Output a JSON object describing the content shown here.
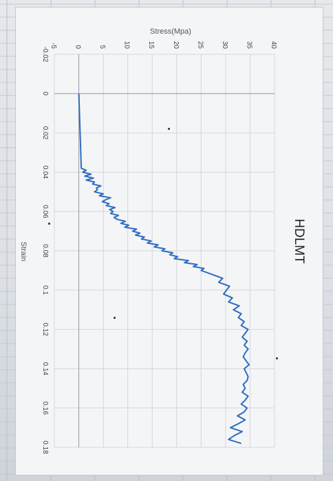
{
  "chart_data": {
    "type": "line",
    "title": "HDLMT",
    "xlabel": "Strain",
    "ylabel": "Stress(Mpa)",
    "xlim": [
      -0.02,
      0.18
    ],
    "ylim": [
      -5,
      40
    ],
    "xticks": [
      "-0.02",
      "0",
      "0.02",
      "0.04",
      "0.06",
      "0.08",
      "0.1",
      "0.12",
      "0.14",
      "0.16",
      "0.18"
    ],
    "yticks": [
      "-5",
      "0",
      "5",
      "10",
      "15",
      "20",
      "25",
      "30",
      "35",
      "40"
    ],
    "grid": true,
    "legend": "none",
    "series": [
      {
        "color": "#2e6cc0",
        "x": [
          0,
          0,
          0.038,
          0.039,
          0.04,
          0.041,
          0.042,
          0.043,
          0.044,
          0.045,
          0.046,
          0.047,
          0.048,
          0.049,
          0.05,
          0.051,
          0.052,
          0.053,
          0.054,
          0.055,
          0.056,
          0.057,
          0.058,
          0.059,
          0.06,
          0.061,
          0.062,
          0.063,
          0.064,
          0.065,
          0.066,
          0.067,
          0.068,
          0.069,
          0.07,
          0.071,
          0.072,
          0.073,
          0.074,
          0.075,
          0.076,
          0.077,
          0.078,
          0.079,
          0.08,
          0.081,
          0.082,
          0.083,
          0.084,
          0.085,
          0.086,
          0.087,
          0.088,
          0.089,
          0.09,
          0.092,
          0.094,
          0.096,
          0.098,
          0.1,
          0.102,
          0.104,
          0.106,
          0.108,
          0.11,
          0.112,
          0.114,
          0.116,
          0.118,
          0.12,
          0.122,
          0.124,
          0.126,
          0.128,
          0.13,
          0.132,
          0.134,
          0.136,
          0.138,
          0.14,
          0.142,
          0.144,
          0.146,
          0.148,
          0.15,
          0.152,
          0.154,
          0.156,
          0.158,
          0.16,
          0.162,
          0.164,
          0.166,
          0.168,
          0.17,
          0.172,
          0.174,
          0.176,
          0.178
        ],
        "y": [
          0,
          0,
          0.5,
          1.5,
          0.8,
          2.5,
          1.2,
          3.0,
          1.5,
          3.2,
          2.8,
          4.5,
          3.6,
          3.8,
          3.2,
          5.0,
          4.2,
          6.5,
          5.5,
          4.8,
          6.2,
          5.6,
          7.4,
          6.3,
          7.0,
          6.5,
          8.1,
          7.2,
          7.8,
          9.5,
          8.6,
          10.2,
          9.4,
          11.8,
          11.0,
          12.5,
          11.6,
          13.4,
          12.8,
          14.8,
          14.0,
          16.2,
          15.4,
          17.6,
          17.0,
          19.2,
          18.6,
          20.2,
          19.5,
          22.4,
          21.6,
          24.2,
          23.4,
          25.6,
          25.0,
          27.2,
          29.4,
          28.6,
          30.8,
          30.2,
          29.6,
          31.4,
          30.6,
          32.8,
          31.6,
          33.2,
          32.6,
          33.8,
          33.2,
          34.6,
          34.0,
          33.4,
          34.4,
          33.8,
          34.6,
          34.0,
          33.6,
          34.2,
          34.8,
          33.8,
          34.2,
          34.6,
          34.4,
          33.6,
          34.0,
          33.4,
          34.6,
          34.0,
          33.2,
          34.4,
          33.8,
          32.4,
          34.0,
          32.6,
          31.0,
          33.4,
          31.8,
          30.6,
          33.2
        ]
      }
    ]
  }
}
